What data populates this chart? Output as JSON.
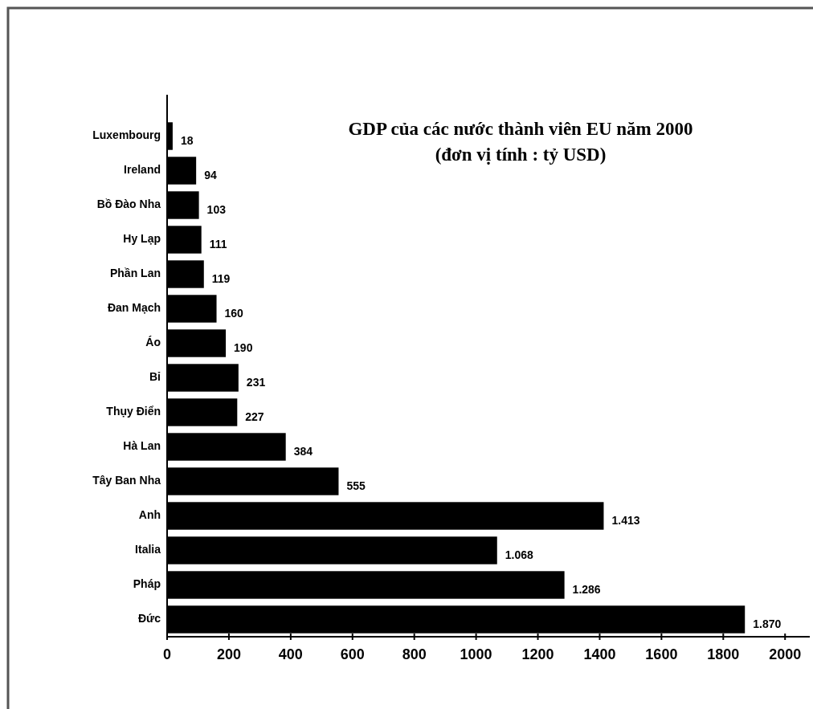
{
  "chart_data": {
    "type": "bar",
    "orientation": "horizontal",
    "title": "GDP của các nước thành viên EU năm 2000",
    "subtitle": "(đơn vị tính : tỷ USD)",
    "categories": [
      "Luxembourg",
      "Ireland",
      "Bồ Đào Nha",
      "Hy Lạp",
      "Phần Lan",
      "Đan Mạch",
      "Áo",
      "Bỉ",
      "Thụy Điển",
      "Hà Lan",
      "Tây Ban Nha",
      "Anh",
      "Italia",
      "Pháp",
      "Đức"
    ],
    "values": [
      18,
      94,
      103,
      111,
      119,
      160,
      190,
      231,
      227,
      384,
      555,
      1413,
      1068,
      1286,
      1870
    ],
    "value_labels": [
      "18",
      "94",
      "103",
      "111",
      "119",
      "160",
      "190",
      "231",
      "227",
      "384",
      "555",
      "1.413",
      "1.068",
      "1.286",
      "1.870"
    ],
    "color": "#000000",
    "xlim": [
      0,
      2080
    ],
    "xticks": [
      0,
      200,
      400,
      600,
      800,
      1000,
      1200,
      1400,
      1600,
      1800,
      2000
    ],
    "grid": false
  }
}
